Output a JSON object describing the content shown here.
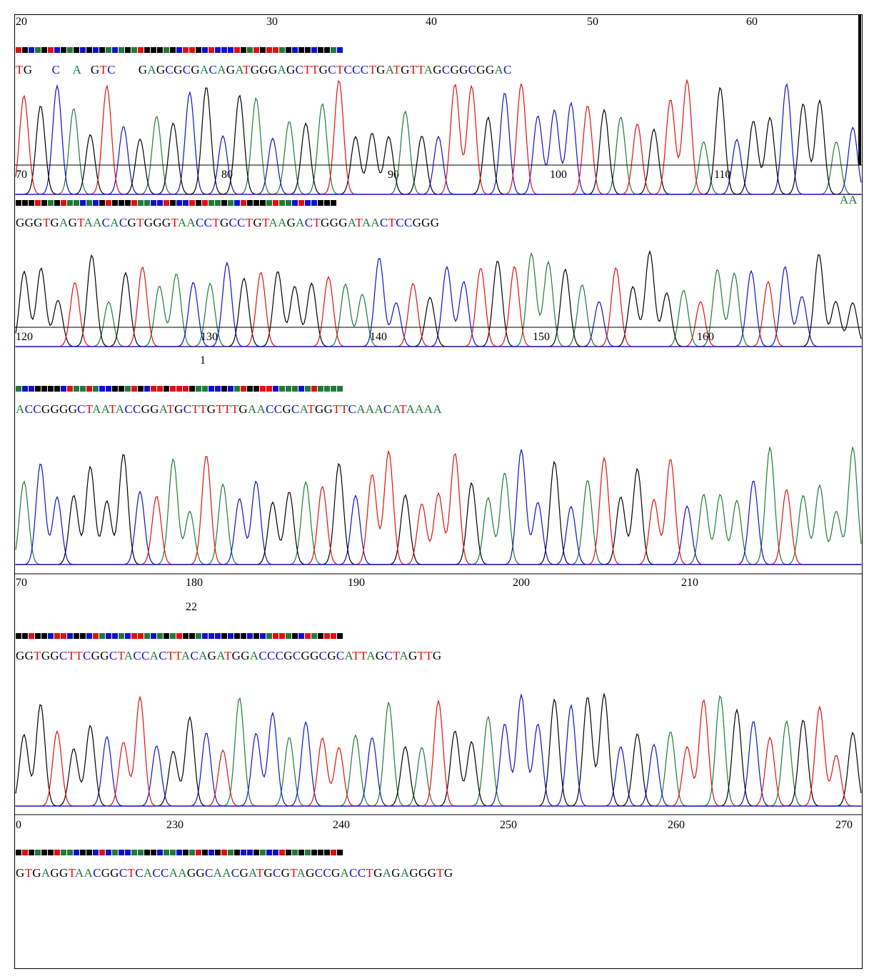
{
  "colors": {
    "A": "#1f7a3a",
    "C": "#1010cc",
    "G": "#000000",
    "T": "#e01010"
  },
  "rows": [
    {
      "ticks": [
        "20",
        "30",
        "40",
        "50",
        "60"
      ],
      "marker": "",
      "sequence": "TG      C    A   GTC       GAGCGCGACAGATGGGAGCTTGCTCCCTGATGTTAGCGGCGGAC",
      "overflow": ""
    },
    {
      "ticks": [
        "70",
        "80",
        "90",
        "100",
        "110"
      ],
      "marker": "",
      "sequence": "GGGTGAGTAACACGTGGGTAACCTGCCTGTAAGACTGGGATAACTCCGGG",
      "overflow": "AA"
    },
    {
      "ticks": [
        "120",
        "130",
        "140",
        "150",
        "160"
      ],
      "marker": "1",
      "sequence": "ACCGGGGCTAATACCGGATGCTTGTTTGAACCGCATGGTTCAAACATAAAA",
      "overflow": ""
    },
    {
      "ticks": [
        "70",
        "180",
        "190",
        "200",
        "210"
      ],
      "marker": "22",
      "sequence": "GGTGGCTTCGGCTACCACTTACAGATGGACCCGCGGCGCATTAGCTAGTTG",
      "overflow": ""
    },
    {
      "ticks": [
        "0",
        "230",
        "240",
        "250",
        "260",
        "270"
      ],
      "marker": "",
      "sequence": "GTGAGGTAACGGCTCACCAAGGCAACGATGCGTAGCCGACCTGAGAGGGTG",
      "overflow": ""
    }
  ]
}
